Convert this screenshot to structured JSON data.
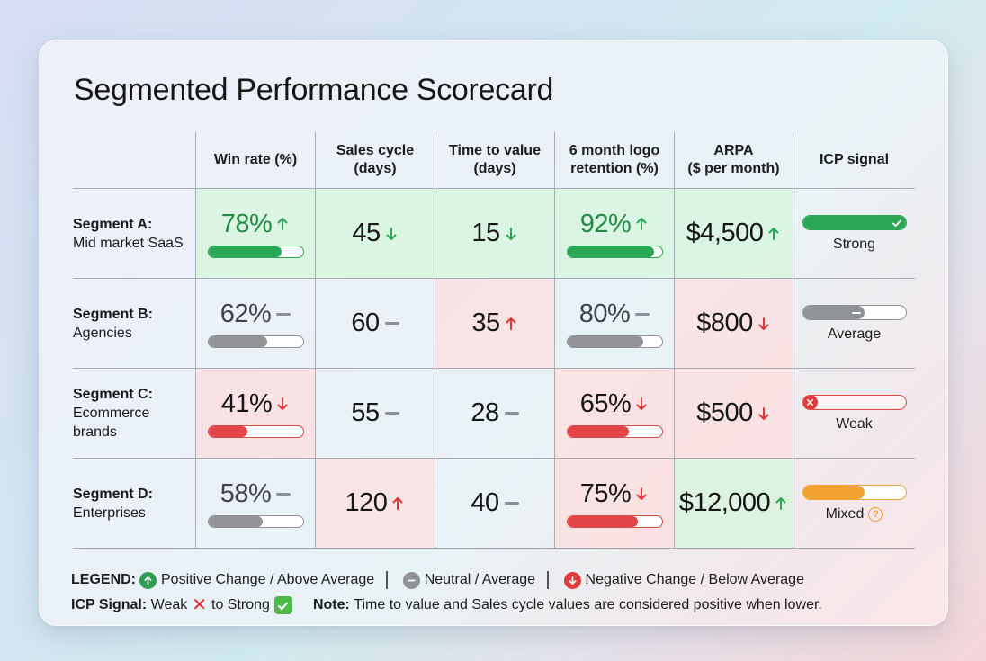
{
  "title": "Segmented Performance Scorecard",
  "colors": {
    "positive": "#2ba654",
    "neutral": "#8f9296",
    "negative": "#e24545",
    "mixed": "#f2a133",
    "positive_bg": "#d6f5dc",
    "negative_bg": "#fddee0"
  },
  "headers": [
    "",
    "Win rate (%)",
    "Sales cycle\n(days)",
    "Time to value\n(days)",
    "6 month logo\nretention (%)",
    "ARPA\n($ per month)",
    "ICP signal"
  ],
  "rows": [
    {
      "segment": "Segment A:",
      "description": "Mid market SaaS",
      "win_rate": {
        "value": "78%",
        "trend": "up",
        "status": "positive",
        "pct": 78
      },
      "sales_cycle": {
        "value": "45",
        "trend": "down",
        "status": "positive"
      },
      "time_to_value": {
        "value": "15",
        "trend": "down",
        "status": "positive"
      },
      "retention": {
        "value": "92%",
        "trend": "up",
        "status": "positive",
        "pct": 92
      },
      "arpa": {
        "value": "$4,500",
        "trend": "up",
        "status": "positive"
      },
      "icp": {
        "label": "Strong",
        "status": "strong",
        "pct": 100,
        "icon": "check-icon"
      }
    },
    {
      "segment": "Segment B:",
      "description": "Agencies",
      "win_rate": {
        "value": "62%",
        "trend": "flat",
        "status": "neutral",
        "pct": 62
      },
      "sales_cycle": {
        "value": "60",
        "trend": "flat",
        "status": "neutral"
      },
      "time_to_value": {
        "value": "35",
        "trend": "up",
        "status": "negative"
      },
      "retention": {
        "value": "80%",
        "trend": "flat",
        "status": "neutral",
        "pct": 80
      },
      "arpa": {
        "value": "$800",
        "trend": "down",
        "status": "negative"
      },
      "icp": {
        "label": "Average",
        "status": "average",
        "pct": 60,
        "icon": "minus-icon"
      }
    },
    {
      "segment": "Segment C:",
      "description": "Ecommerce\nbrands",
      "win_rate": {
        "value": "41%",
        "trend": "down",
        "status": "negative",
        "pct": 41
      },
      "sales_cycle": {
        "value": "55",
        "trend": "flat",
        "status": "neutral"
      },
      "time_to_value": {
        "value": "28",
        "trend": "flat",
        "status": "neutral"
      },
      "retention": {
        "value": "65%",
        "trend": "down",
        "status": "negative",
        "pct": 65
      },
      "arpa": {
        "value": "$500",
        "trend": "down",
        "status": "negative"
      },
      "icp": {
        "label": "Weak",
        "status": "weak",
        "pct": 0,
        "icon": "x-icon"
      }
    },
    {
      "segment": "Segment D:",
      "description": "Enterprises",
      "win_rate": {
        "value": "58%",
        "trend": "flat",
        "status": "neutral",
        "pct": 58
      },
      "sales_cycle": {
        "value": "120",
        "trend": "up",
        "status": "negative"
      },
      "time_to_value": {
        "value": "40",
        "trend": "flat",
        "status": "neutral"
      },
      "retention": {
        "value": "75%",
        "trend": "down",
        "status": "negative",
        "pct": 75
      },
      "arpa": {
        "value": "$12,000",
        "trend": "up",
        "status": "positive"
      },
      "icp": {
        "label": "Mixed",
        "status": "mixed",
        "pct": 60,
        "icon": "question-icon"
      }
    }
  ],
  "legend": {
    "label": "LEGEND:",
    "positive": "Positive Change / Above Average",
    "neutral": "Neutral / Average",
    "negative": "Negative Change / Below Average",
    "icp_label": "ICP Signal:",
    "icp_weak": "Weak",
    "icp_to_strong": "to Strong",
    "note_label": "Note:",
    "note_text": "Time to value and Sales cycle values are considered positive when lower."
  }
}
